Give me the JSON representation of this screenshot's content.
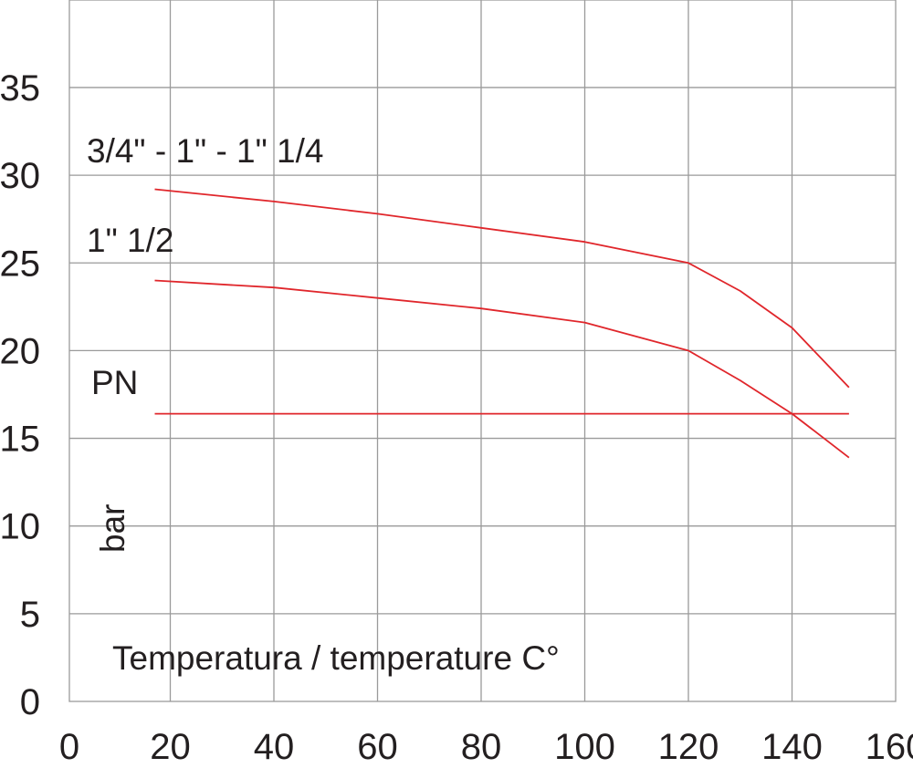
{
  "chart_data": {
    "type": "line",
    "title": "",
    "xlabel": "Temperatura / temperature C°",
    "ylabel": "bar",
    "xlim": [
      0,
      160
    ],
    "ylim": [
      0,
      40
    ],
    "x_ticks": [
      "0",
      "20",
      "40",
      "60",
      "80",
      "100",
      "120",
      "140",
      "160"
    ],
    "y_ticks": [
      "0",
      "5",
      "10",
      "15",
      "20",
      "25",
      "30",
      "35"
    ],
    "grid": true,
    "line_color": "#e0262b",
    "grid_color": "#9a9a9a",
    "series": [
      {
        "name": "3/4\" - 1\" - 1\" 1/4",
        "x": [
          17,
          40,
          60,
          80,
          100,
          120,
          130,
          140,
          151
        ],
        "y": [
          29.2,
          28.5,
          27.8,
          27.0,
          26.2,
          25.0,
          23.4,
          21.3,
          17.9
        ]
      },
      {
        "name": "1\" 1/2",
        "x": [
          17,
          40,
          60,
          80,
          100,
          120,
          130,
          140,
          151
        ],
        "y": [
          24.0,
          23.6,
          23.0,
          22.4,
          21.6,
          20.0,
          18.3,
          16.4,
          13.9
        ]
      },
      {
        "name": "PN",
        "x": [
          17,
          151
        ],
        "y": [
          16.4,
          16.4
        ]
      }
    ]
  }
}
